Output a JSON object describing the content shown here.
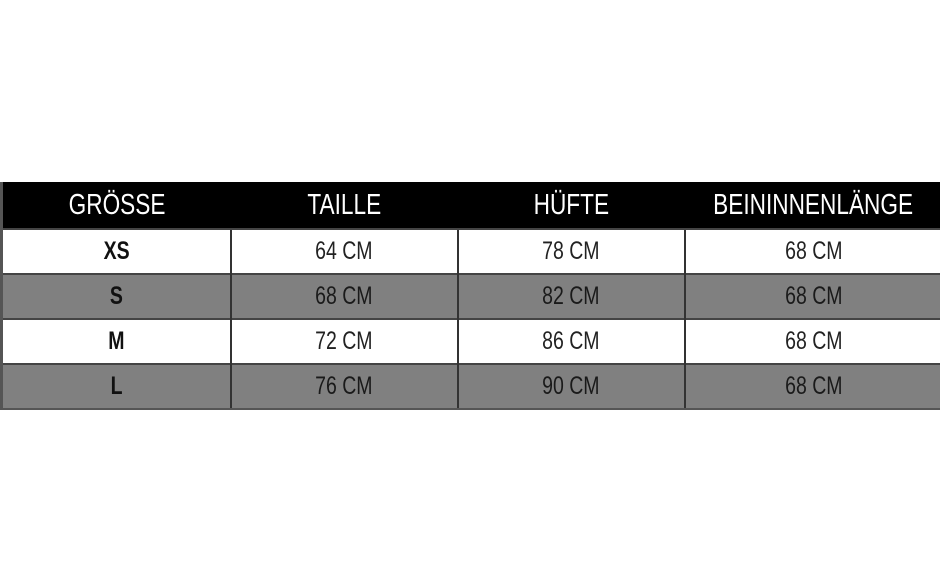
{
  "table": {
    "headers": [
      "GRÖSSE",
      "TAILLE",
      "HÜFTE",
      "BEININNENLÄNGE"
    ],
    "rows": [
      [
        "XS",
        "64 CM",
        "78 CM",
        "68 CM"
      ],
      [
        "S",
        "68 CM",
        "82 CM",
        "68 CM"
      ],
      [
        "M",
        "72 CM",
        "86 CM",
        "68 CM"
      ],
      [
        "L",
        "76 CM",
        "90 CM",
        "68 CM"
      ]
    ]
  },
  "colors": {
    "header_bg": "#000000",
    "row_alt_bg": "#808080",
    "row_bg": "#ffffff"
  }
}
